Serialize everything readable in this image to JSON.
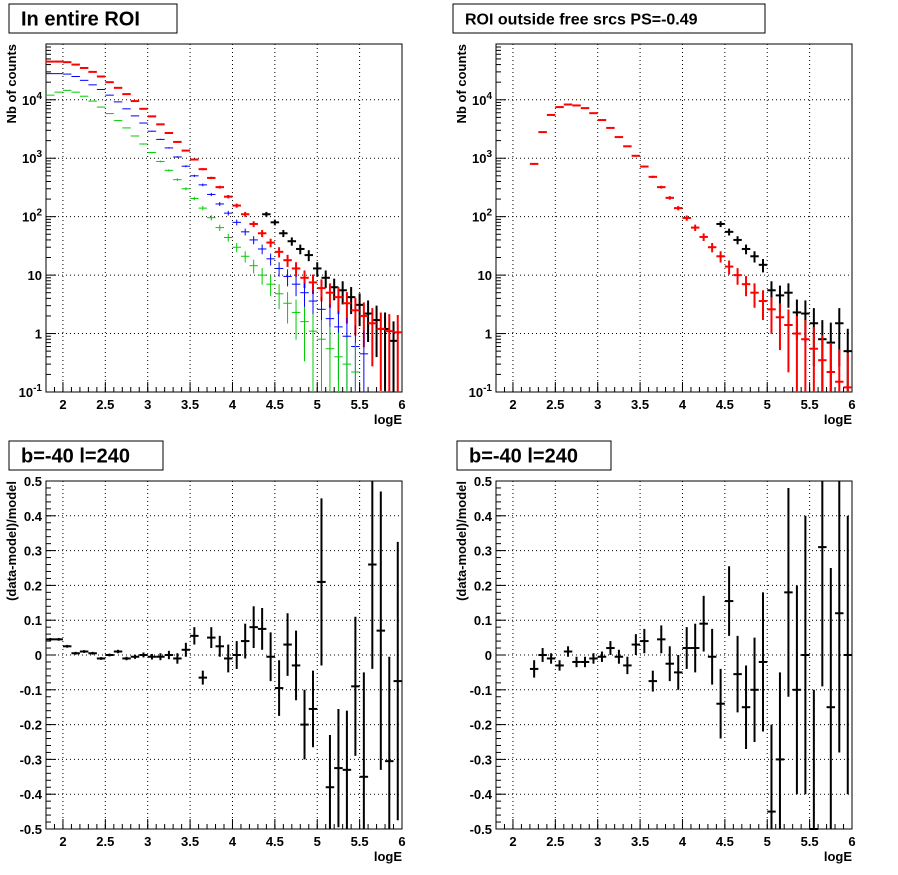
{
  "chart_data": [
    {
      "type": "scatter",
      "title": "In entire ROI",
      "xlabel": "logE",
      "ylabel": "Nb of counts",
      "xlim": [
        1.8,
        6.0
      ],
      "ylim": [
        0.1,
        90000
      ],
      "yscale": "log",
      "grid": true,
      "xticks": [
        "2",
        "2.5",
        "3",
        "3.5",
        "4",
        "4.5",
        "5",
        "5.5",
        "6"
      ],
      "yticks": [
        "10^-1",
        "1",
        "10",
        "10^2",
        "10^3",
        "10^4"
      ],
      "series": [
        {
          "color": "#000000",
          "x": [
            4.4,
            4.5,
            4.6,
            4.7,
            4.8,
            4.9,
            5.0,
            5.1,
            5.2,
            5.3,
            5.4,
            5.5,
            5.6,
            5.7,
            5.8,
            5.9
          ],
          "y": [
            110,
            80,
            52,
            38,
            28,
            22,
            13,
            9,
            6.2,
            5.5,
            4.2,
            3.1,
            2.2,
            1.7,
            1.2,
            0.75
          ]
        },
        {
          "color": "#ff0000",
          "x": [
            1.85,
            1.95,
            2.05,
            2.15,
            2.25,
            2.35,
            2.45,
            2.55,
            2.65,
            2.75,
            2.85,
            2.95,
            3.05,
            3.15,
            3.25,
            3.35,
            3.45,
            3.55,
            3.65,
            3.75,
            3.85,
            3.95,
            4.05,
            4.15,
            4.25,
            4.35,
            4.45,
            4.55,
            4.65,
            4.75,
            4.85,
            4.95,
            5.05,
            5.15,
            5.25,
            5.35,
            5.45,
            5.55,
            5.65,
            5.75,
            5.85,
            5.95
          ],
          "y": [
            45000,
            45000,
            44000,
            40000,
            35000,
            30000,
            25000,
            20000,
            16000,
            12500,
            9500,
            7000,
            5200,
            3800,
            2700,
            1900,
            1350,
            950,
            650,
            460,
            320,
            220,
            155,
            110,
            75,
            52,
            36,
            25,
            18,
            13,
            9,
            7.5,
            6,
            5,
            4.2,
            3.3,
            2.5,
            2,
            1.5,
            1.2,
            1.1,
            1.05
          ]
        },
        {
          "color": "#0000ff",
          "x": [
            1.85,
            1.95,
            2.05,
            2.15,
            2.25,
            2.35,
            2.45,
            2.55,
            2.65,
            2.75,
            2.85,
            2.95,
            3.05,
            3.15,
            3.25,
            3.35,
            3.45,
            3.55,
            3.65,
            3.75,
            3.85,
            3.95,
            4.05,
            4.15,
            4.25,
            4.35,
            4.45,
            4.55,
            4.65,
            4.75,
            4.85,
            4.95,
            5.05,
            5.15,
            5.25,
            5.35,
            5.45,
            5.55
          ],
          "y": [
            28000,
            28000,
            27500,
            25000,
            21500,
            18000,
            15000,
            12000,
            9200,
            7000,
            5300,
            4000,
            2900,
            2100,
            1500,
            1050,
            730,
            500,
            350,
            240,
            165,
            115,
            80,
            55,
            40,
            28,
            19,
            13,
            9.5,
            7,
            5,
            3.6,
            2.6,
            1.8,
            1.3,
            0.9,
            0.6,
            0.45
          ]
        },
        {
          "color": "#00cc00",
          "x": [
            1.85,
            1.95,
            2.05,
            2.15,
            2.25,
            2.35,
            2.45,
            2.55,
            2.65,
            2.75,
            2.85,
            2.95,
            3.05,
            3.15,
            3.25,
            3.35,
            3.45,
            3.55,
            3.65,
            3.75,
            3.85,
            3.95,
            4.05,
            4.15,
            4.25,
            4.35,
            4.45,
            4.55,
            4.65,
            4.75,
            4.85,
            4.95,
            5.05,
            5.15,
            5.25,
            5.35,
            5.45
          ],
          "y": [
            12000,
            13500,
            14500,
            13500,
            11500,
            9500,
            7500,
            5800,
            4400,
            3300,
            2400,
            1750,
            1250,
            880,
            620,
            430,
            300,
            205,
            140,
            96,
            65,
            44,
            30,
            21,
            14.5,
            10,
            7,
            4.8,
            3.3,
            2.3,
            1.6,
            1.1,
            0.8,
            0.55,
            0.4,
            0.3,
            0.22
          ]
        }
      ]
    },
    {
      "type": "scatter",
      "title": "ROI outside free srcs PS=-0.49",
      "xlabel": "logE",
      "ylabel": "Nb of counts",
      "xlim": [
        1.8,
        6.0
      ],
      "ylim": [
        0.1,
        90000
      ],
      "yscale": "log",
      "grid": true,
      "xticks": [
        "2",
        "2.5",
        "3",
        "3.5",
        "4",
        "4.5",
        "5",
        "5.5",
        "6"
      ],
      "yticks": [
        "10^-1",
        "1",
        "10",
        "10^2",
        "10^3",
        "10^4"
      ],
      "series": [
        {
          "color": "#000000",
          "x": [
            4.45,
            4.55,
            4.65,
            4.75,
            4.85,
            4.95,
            5.05,
            5.15,
            5.25,
            5.35,
            5.45,
            5.55,
            5.65,
            5.75,
            5.85,
            5.95
          ],
          "y": [
            75,
            55,
            40,
            28,
            21,
            15,
            5.5,
            4.5,
            5,
            2.3,
            2.2,
            1.5,
            0.8,
            0.7,
            1.5,
            0.5
          ]
        },
        {
          "color": "#ff0000",
          "x": [
            2.25,
            2.35,
            2.45,
            2.55,
            2.65,
            2.75,
            2.85,
            2.95,
            3.05,
            3.15,
            3.25,
            3.35,
            3.45,
            3.55,
            3.65,
            3.75,
            3.85,
            3.95,
            4.05,
            4.15,
            4.25,
            4.35,
            4.45,
            4.55,
            4.65,
            4.75,
            4.85,
            4.95,
            5.05,
            5.15,
            5.25,
            5.35,
            5.45,
            5.55,
            5.65,
            5.75,
            5.85,
            5.95
          ],
          "y": [
            800,
            2800,
            5500,
            7500,
            8300,
            8000,
            7200,
            5900,
            4500,
            3300,
            2300,
            1600,
            1100,
            720,
            480,
            320,
            210,
            140,
            95,
            65,
            45,
            30,
            21,
            14,
            10,
            7,
            5,
            3.6,
            2.6,
            1.9,
            1.4,
            1.0,
            0.8,
            0.55,
            0.35,
            0.22,
            0.15,
            0.12
          ]
        }
      ]
    },
    {
      "type": "scatter",
      "title": "b=-40 l=240",
      "xlabel": "logE",
      "ylabel": "(data-model)/model",
      "xlim": [
        1.8,
        6.0
      ],
      "ylim": [
        -0.5,
        0.5
      ],
      "grid": true,
      "xticks": [
        "2",
        "2.5",
        "3",
        "3.5",
        "4",
        "4.5",
        "5",
        "5.5",
        "6"
      ],
      "yticks": [
        "-0.5",
        "-0.4",
        "-0.3",
        "-0.2",
        "-0.1",
        "0",
        "0.1",
        "0.2",
        "0.3",
        "0.4",
        "0.5"
      ],
      "series": [
        {
          "color": "#000000",
          "x": [
            1.85,
            1.95,
            2.05,
            2.15,
            2.25,
            2.35,
            2.45,
            2.55,
            2.65,
            2.75,
            2.85,
            2.95,
            3.05,
            3.15,
            3.25,
            3.35,
            3.45,
            3.55,
            3.65,
            3.75,
            3.85,
            3.95,
            4.05,
            4.15,
            4.25,
            4.35,
            4.45,
            4.55,
            4.65,
            4.75,
            4.85,
            4.95,
            5.05,
            5.15,
            5.25,
            5.35,
            5.45,
            5.55,
            5.65,
            5.75,
            5.85,
            5.95
          ],
          "y": [
            0.045,
            0.045,
            0.025,
            0.005,
            0.01,
            0.005,
            -0.01,
            0.0,
            0.01,
            -0.01,
            -0.005,
            0.0,
            -0.005,
            -0.005,
            0.0,
            -0.01,
            0.015,
            0.055,
            -0.065,
            0.05,
            0.025,
            -0.01,
            0.0,
            0.04,
            0.08,
            0.075,
            -0.005,
            -0.095,
            0.03,
            -0.03,
            -0.2,
            -0.155,
            0.21,
            -0.38,
            -0.325,
            -0.33,
            -0.09,
            -0.35,
            0.26,
            0.07,
            -0.305,
            -0.075
          ],
          "err": [
            0.004,
            0.004,
            0.004,
            0.004,
            0.004,
            0.004,
            0.004,
            0.004,
            0.005,
            0.005,
            0.006,
            0.007,
            0.008,
            0.01,
            0.012,
            0.015,
            0.02,
            0.025,
            0.02,
            0.03,
            0.03,
            0.04,
            0.04,
            0.05,
            0.06,
            0.06,
            0.07,
            0.08,
            0.09,
            0.1,
            0.1,
            0.11,
            0.24,
            0.15,
            0.17,
            0.17,
            0.2,
            0.3,
            0.3,
            0.4,
            0.3,
            0.4
          ]
        }
      ]
    },
    {
      "type": "scatter",
      "title": "b=-40 l=240",
      "xlabel": "logE",
      "ylabel": "(data-model)/model",
      "xlim": [
        1.8,
        6.0
      ],
      "ylim": [
        -0.5,
        0.5
      ],
      "grid": true,
      "xticks": [
        "2",
        "2.5",
        "3",
        "3.5",
        "4",
        "4.5",
        "5",
        "5.5",
        "6"
      ],
      "yticks": [
        "-0.5",
        "-0.4",
        "-0.3",
        "-0.2",
        "-0.1",
        "0",
        "0.1",
        "0.2",
        "0.3",
        "0.4",
        "0.5"
      ],
      "series": [
        {
          "color": "#000000",
          "x": [
            2.25,
            2.35,
            2.45,
            2.55,
            2.65,
            2.75,
            2.85,
            2.95,
            3.05,
            3.15,
            3.25,
            3.35,
            3.45,
            3.55,
            3.65,
            3.75,
            3.85,
            3.95,
            4.05,
            4.15,
            4.25,
            4.35,
            4.45,
            4.55,
            4.65,
            4.75,
            4.85,
            4.95,
            5.05,
            5.15,
            5.25,
            5.35,
            5.45,
            5.55,
            5.65,
            5.75,
            5.85,
            5.95
          ],
          "y": [
            -0.04,
            0.0,
            -0.01,
            -0.03,
            0.01,
            -0.02,
            -0.02,
            -0.01,
            -0.005,
            0.02,
            -0.005,
            -0.03,
            0.03,
            0.04,
            -0.075,
            0.045,
            -0.025,
            -0.05,
            0.02,
            0.02,
            0.09,
            -0.005,
            -0.14,
            0.155,
            -0.055,
            -0.15,
            -0.1,
            -0.02,
            -0.45,
            -0.3,
            0.18,
            -0.1,
            0.0,
            -0.5,
            0.31,
            -0.15,
            0.12,
            0.0
          ],
          "err": [
            0.025,
            0.02,
            0.015,
            0.015,
            0.015,
            0.015,
            0.015,
            0.015,
            0.015,
            0.02,
            0.02,
            0.025,
            0.03,
            0.035,
            0.03,
            0.04,
            0.05,
            0.05,
            0.06,
            0.07,
            0.08,
            0.08,
            0.1,
            0.1,
            0.11,
            0.12,
            0.15,
            0.2,
            0.25,
            0.25,
            0.3,
            0.3,
            0.4,
            0.4,
            0.4,
            0.4,
            0.4,
            0.4
          ]
        }
      ]
    }
  ]
}
